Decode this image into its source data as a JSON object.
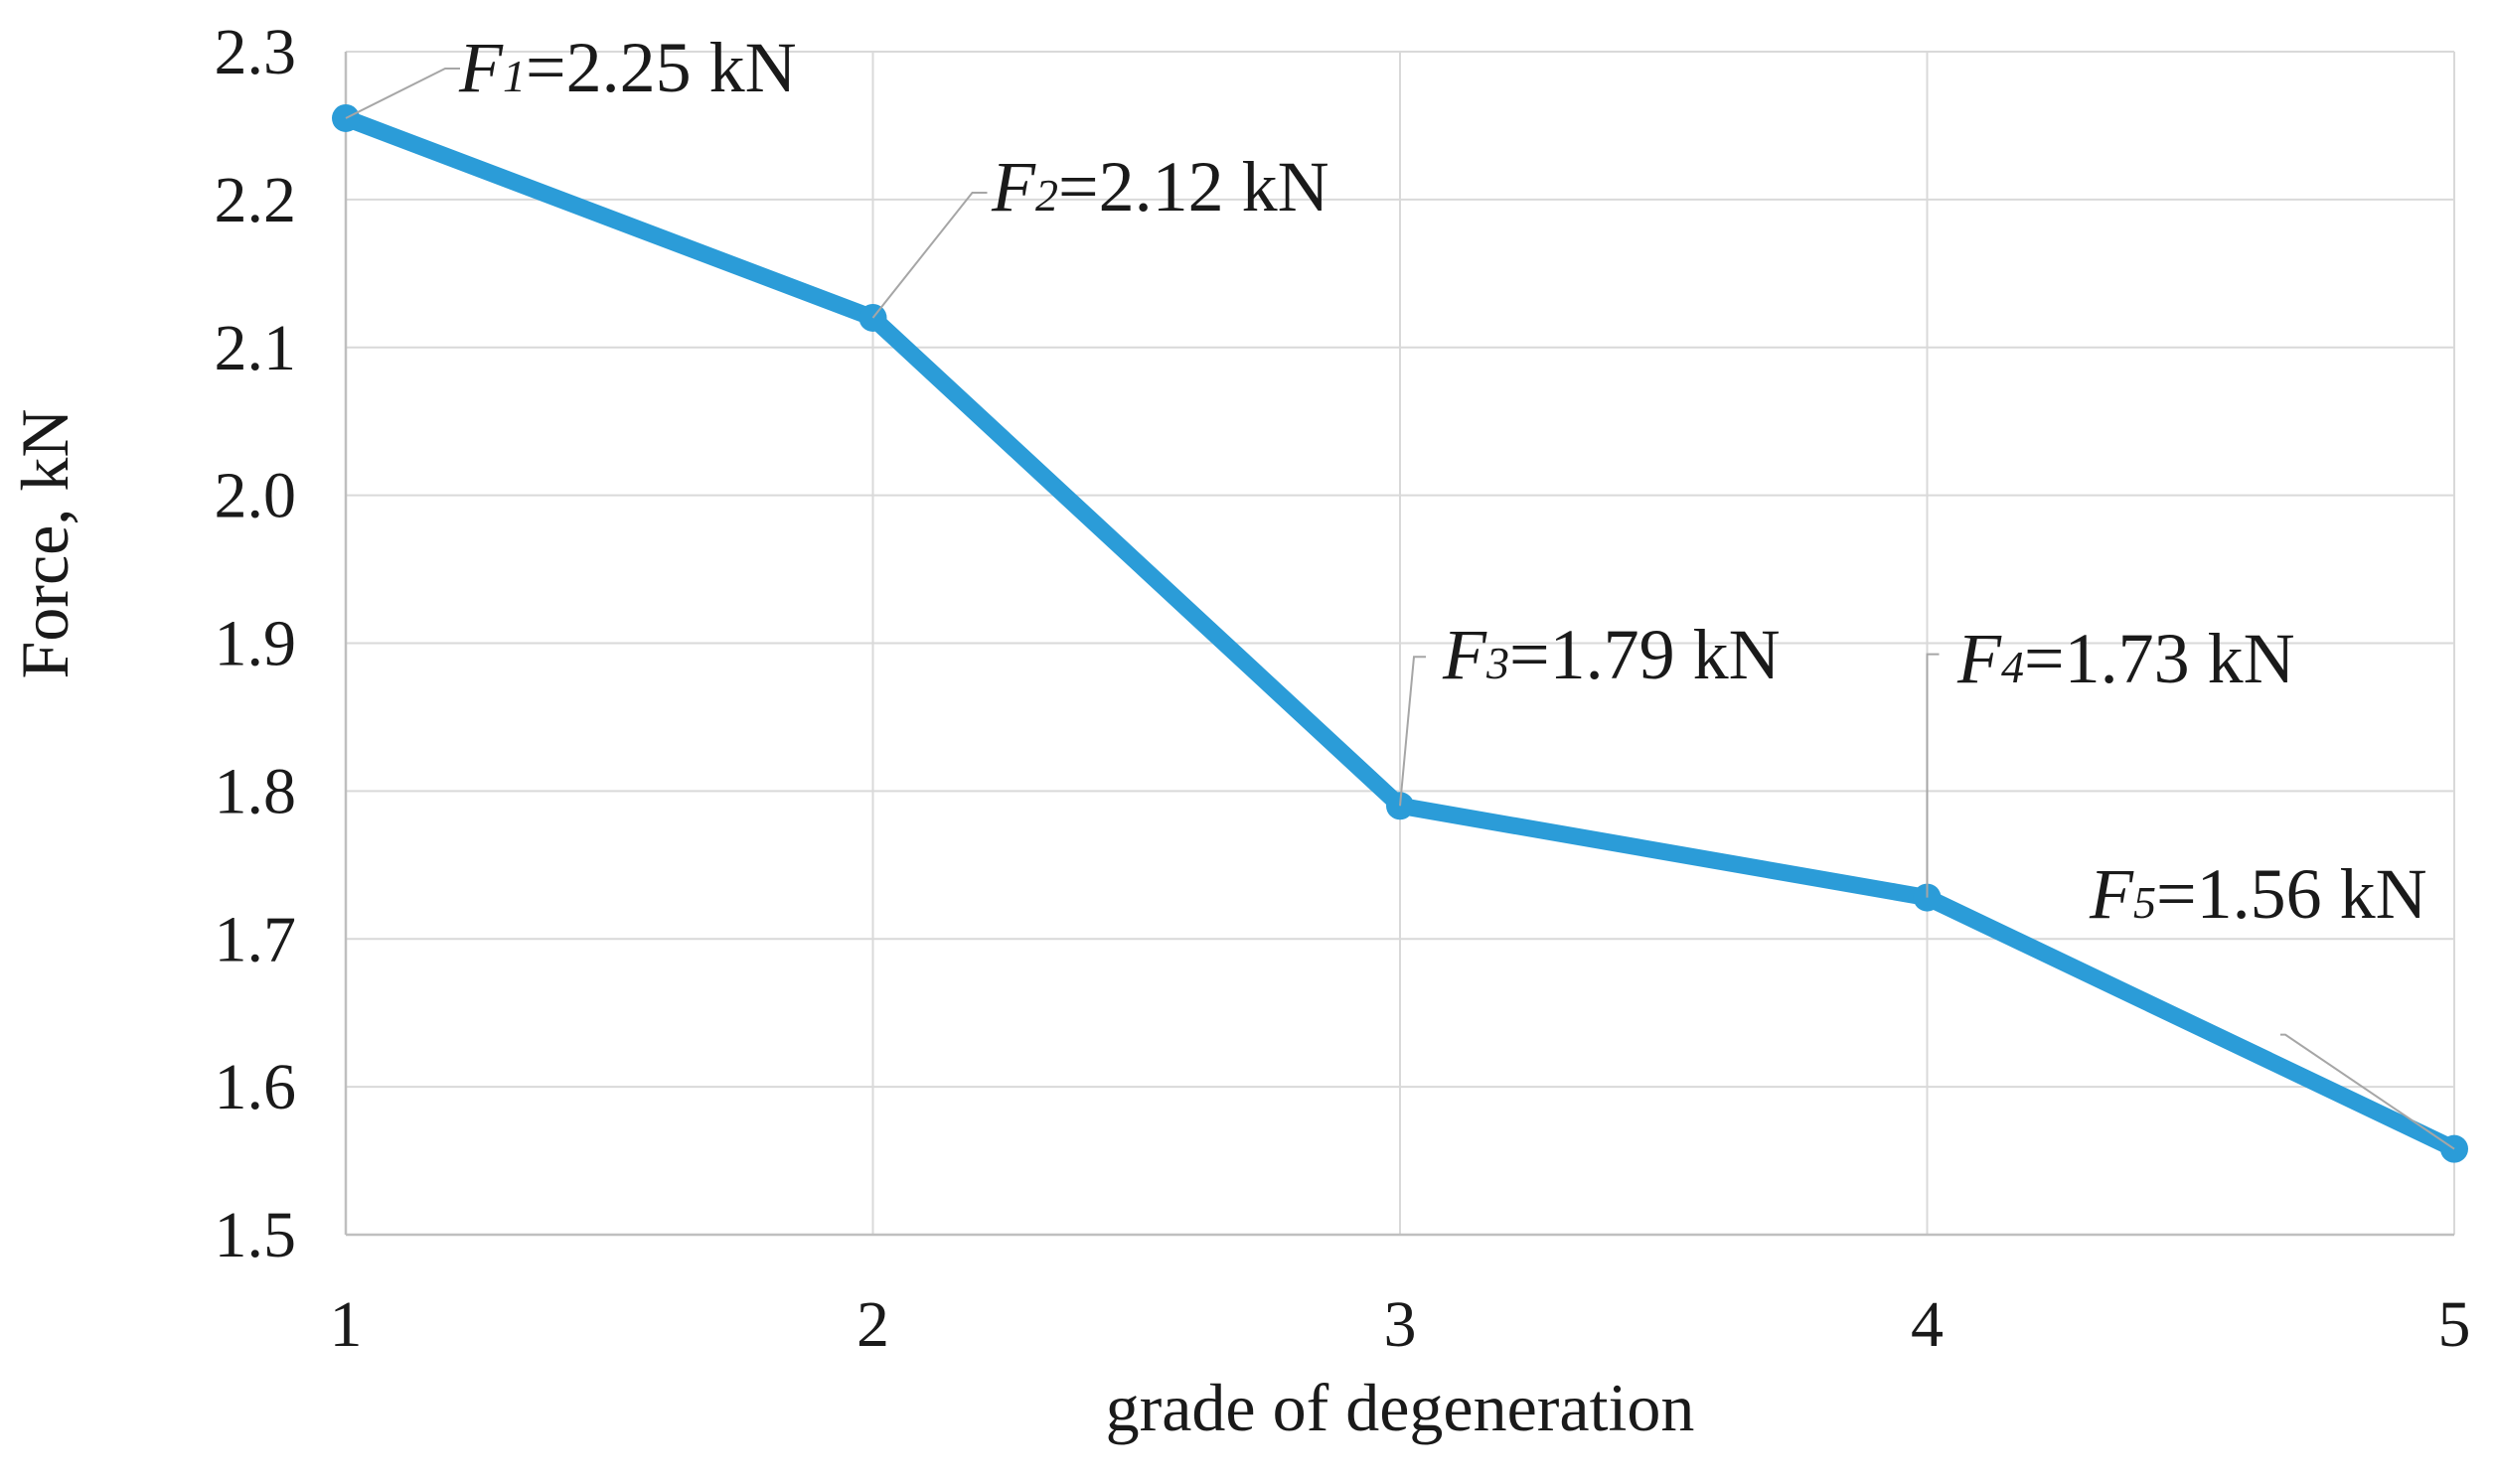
{
  "chart_data": {
    "type": "line",
    "title": "",
    "xlabel": "grade of degeneration",
    "ylabel": "Force, kN",
    "x": [
      1,
      2,
      3,
      4,
      5
    ],
    "xlim": [
      1,
      5
    ],
    "ylim": [
      1.5,
      2.3
    ],
    "y_ticks": [
      "1.5",
      "1.6",
      "1.7",
      "1.8",
      "1.9",
      "2.0",
      "2.1",
      "2.2",
      "2.3"
    ],
    "x_ticks": [
      "1",
      "2",
      "3",
      "4",
      "5"
    ],
    "grid": true,
    "series": [
      {
        "name": "Force",
        "values": [
          2.255,
          2.12,
          1.79,
          1.728,
          1.558
        ],
        "color": "#2b9cd8"
      }
    ],
    "annotations": [
      {
        "symbol": "F",
        "sub": "1",
        "value_text": "=2.25 kN"
      },
      {
        "symbol": "F",
        "sub": "2",
        "value_text": "=2.12 kN"
      },
      {
        "symbol": "F",
        "sub": "3",
        "value_text": "=1.79 kN"
      },
      {
        "symbol": "F",
        "sub": "4",
        "value_text": "=1.73 kN"
      },
      {
        "symbol": "F",
        "sub": "5",
        "value_text": "=1.56 kN"
      }
    ]
  }
}
